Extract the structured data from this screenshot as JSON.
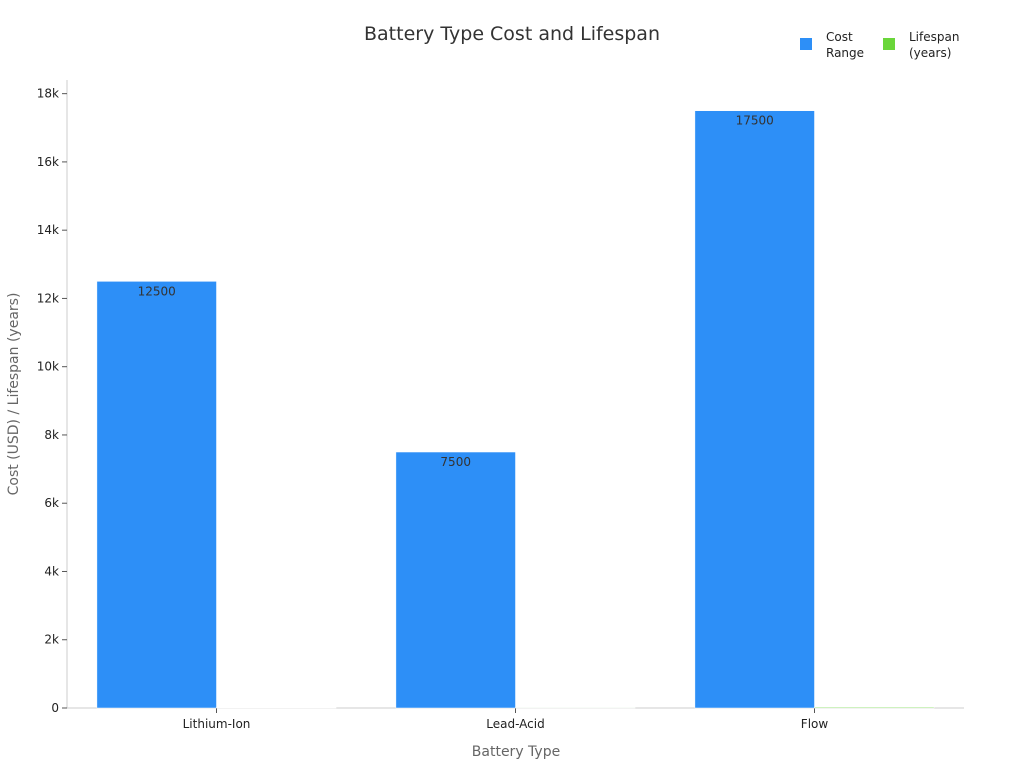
{
  "chart_data": {
    "type": "bar",
    "title": "Battery Type Cost and Lifespan",
    "xlabel": "Battery Type",
    "ylabel": "Cost (USD) / Lifespan (years)",
    "categories": [
      "Lithium-Ion",
      "Lead-Acid",
      "Flow"
    ],
    "series": [
      {
        "name": "Cost\nRange",
        "values": [
          12500,
          7500,
          17500
        ],
        "color": "#2d8ff7",
        "show_labels": true
      },
      {
        "name": "Lifespan\n(years)",
        "values": [
          12,
          5,
          25
        ],
        "color": "#6ad63a",
        "show_labels": false
      }
    ],
    "ylim": [
      0,
      18400
    ],
    "yticks": [
      0,
      2000,
      4000,
      6000,
      8000,
      10000,
      12000,
      14000,
      16000,
      18000
    ],
    "ytick_labels": [
      "0",
      "2k",
      "4k",
      "6k",
      "8k",
      "10k",
      "12k",
      "14k",
      "16k",
      "18k"
    ],
    "grid": false,
    "legend_position": "top-right"
  }
}
